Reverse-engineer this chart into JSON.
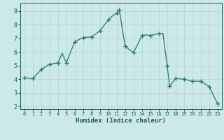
{
  "xp": [
    0,
    1,
    2,
    3,
    4,
    4.5,
    5,
    6,
    7,
    8,
    9,
    10,
    10.5,
    11,
    11.3,
    12,
    13,
    14,
    14.5,
    15,
    16,
    16.5,
    17,
    17.3,
    18,
    19,
    20,
    21,
    22,
    23
  ],
  "yp": [
    4.1,
    4.05,
    4.7,
    5.1,
    5.2,
    5.9,
    5.2,
    6.75,
    7.05,
    7.1,
    7.55,
    8.35,
    8.65,
    8.85,
    9.1,
    6.4,
    5.95,
    7.2,
    7.25,
    7.2,
    7.35,
    7.35,
    5.0,
    3.5,
    4.05,
    4.0,
    3.85,
    3.85,
    3.45,
    2.2
  ],
  "marker_x": [
    0,
    1,
    2,
    3,
    4,
    5,
    6,
    7,
    8,
    9,
    10,
    11,
    11.3,
    12,
    13,
    14,
    15,
    16,
    17,
    17.3,
    18,
    19,
    20,
    21,
    22,
    23
  ],
  "marker_y": [
    4.1,
    4.05,
    4.7,
    5.1,
    5.2,
    5.2,
    6.75,
    7.05,
    7.1,
    7.55,
    8.35,
    8.85,
    9.1,
    6.4,
    5.95,
    7.2,
    7.2,
    7.35,
    5.0,
    3.5,
    4.05,
    4.0,
    3.85,
    3.85,
    3.45,
    2.2
  ],
  "xlabel": "Humidex (Indice chaleur)",
  "line_color": "#2a7a63",
  "bg_color": "#cde8e8",
  "grid_color": "#aed4d4",
  "tick_label_color": "#1a5c50",
  "xlabel_color": "#1a5c50",
  "ylim": [
    1.8,
    9.6
  ],
  "xlim": [
    -0.5,
    23.5
  ],
  "yticks": [
    2,
    3,
    4,
    5,
    6,
    7,
    8,
    9
  ],
  "xticks": [
    0,
    1,
    2,
    3,
    4,
    5,
    6,
    7,
    8,
    9,
    10,
    11,
    12,
    13,
    14,
    15,
    16,
    17,
    18,
    19,
    20,
    21,
    22,
    23
  ]
}
